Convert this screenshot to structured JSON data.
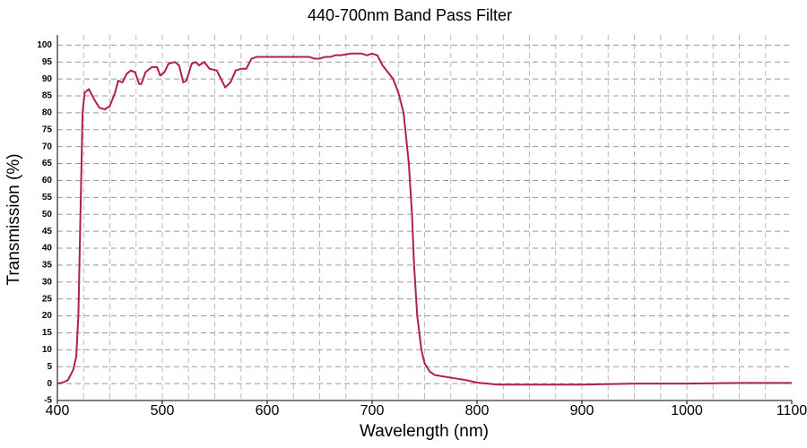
{
  "chart_data": {
    "type": "line",
    "title": "440-700nm Band Pass Filter",
    "x_label": "Wavelength (nm)",
    "y_label": "Transmission (%)",
    "xlim": [
      400,
      1100
    ],
    "ylim": [
      -5,
      103
    ],
    "xticks": [
      400,
      500,
      600,
      700,
      800,
      900,
      1000,
      1100
    ],
    "xgrid": [
      425,
      450,
      475,
      500,
      525,
      550,
      575,
      600,
      625,
      650,
      675,
      700,
      725,
      750,
      775,
      800,
      825,
      850,
      875,
      900,
      925,
      950,
      975,
      1000,
      1025,
      1050,
      1075
    ],
    "yticks": [
      -5,
      0,
      5,
      10,
      15,
      20,
      25,
      30,
      35,
      40,
      45,
      50,
      55,
      60,
      65,
      70,
      75,
      80,
      85,
      90,
      95,
      100
    ],
    "grid": true,
    "series": [
      {
        "name": "Transmission",
        "color": "#b01f4e",
        "x": [
          400,
          405,
          410,
          415,
          418,
          420,
          422,
          424,
          426,
          430,
          435,
          440,
          445,
          450,
          455,
          458,
          462,
          466,
          470,
          474,
          478,
          480,
          484,
          490,
          495,
          498,
          502,
          506,
          512,
          516,
          520,
          523,
          528,
          532,
          535,
          540,
          545,
          552,
          556,
          560,
          565,
          570,
          575,
          580,
          585,
          590,
          600,
          620,
          640,
          645,
          650,
          655,
          660,
          665,
          670,
          680,
          690,
          695,
          700,
          705,
          710,
          720,
          725,
          730,
          735,
          738,
          740,
          743,
          747,
          750,
          755,
          760,
          770,
          780,
          790,
          800,
          820,
          900,
          950,
          1000,
          1050,
          1100
        ],
        "values": [
          0,
          0.3,
          1,
          4,
          8,
          20,
          50,
          80,
          86,
          87,
          84,
          81.5,
          81,
          82,
          86,
          89.5,
          89,
          91.5,
          92.5,
          92,
          88.5,
          88.5,
          92,
          93.5,
          93.5,
          91,
          92,
          94.5,
          95,
          94,
          89,
          89.5,
          94.5,
          95,
          94,
          95,
          93,
          92.5,
          90,
          87.5,
          89,
          92.5,
          93,
          93,
          96,
          96.5,
          96.5,
          96.5,
          96.5,
          96,
          96,
          96.5,
          96.5,
          97,
          97,
          97.5,
          97.5,
          97,
          97.5,
          97,
          94,
          90,
          86,
          80,
          65,
          50,
          35,
          20,
          10,
          6,
          3.5,
          2.5,
          2,
          1.5,
          1,
          0.3,
          -0.3,
          -0.3,
          0,
          0,
          0.2,
          0.2
        ]
      }
    ]
  }
}
